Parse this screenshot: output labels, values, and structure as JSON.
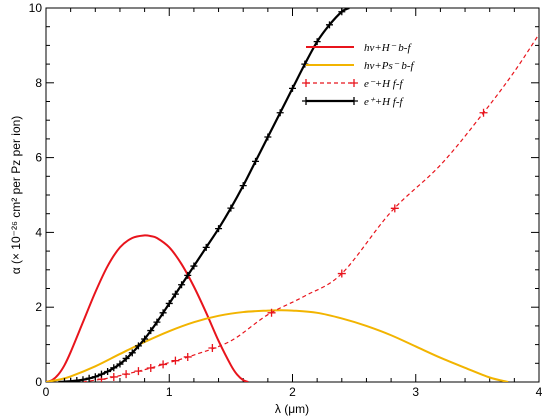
{
  "chart_data": {
    "type": "line",
    "xlabel": "λ (μm)",
    "ylabel": "α (× 10⁻²⁶ cm² per Pz per ion)",
    "xlim": [
      0,
      4
    ],
    "ylim": [
      0,
      10
    ],
    "x_ticks": [
      "0",
      "1",
      "2",
      "3",
      "4"
    ],
    "y_ticks": [
      "0",
      "2",
      "4",
      "6",
      "8",
      "10"
    ],
    "legend_position": "top-right",
    "series": [
      {
        "name": "hν+H⁻ b-f",
        "color": "#e8141c",
        "style": "solid",
        "marker": "none",
        "x": [
          0.0,
          0.05,
          0.1,
          0.15,
          0.2,
          0.3,
          0.4,
          0.5,
          0.6,
          0.7,
          0.8,
          0.85,
          0.9,
          1.0,
          1.1,
          1.2,
          1.3,
          1.4,
          1.5,
          1.55,
          1.6,
          1.64
        ],
        "y": [
          0.0,
          0.05,
          0.2,
          0.45,
          0.8,
          1.6,
          2.4,
          3.1,
          3.6,
          3.85,
          3.92,
          3.9,
          3.85,
          3.6,
          3.15,
          2.55,
          1.85,
          1.1,
          0.45,
          0.2,
          0.05,
          0.0
        ]
      },
      {
        "name": "hν+Ps⁻ b-f",
        "color": "#f2b400",
        "style": "solid",
        "marker": "none",
        "x": [
          0.0,
          0.1,
          0.2,
          0.4,
          0.6,
          0.8,
          1.0,
          1.2,
          1.4,
          1.6,
          1.8,
          1.9,
          2.0,
          2.2,
          2.4,
          2.6,
          2.8,
          3.0,
          3.2,
          3.4,
          3.6,
          3.75
        ],
        "y": [
          0.0,
          0.06,
          0.15,
          0.42,
          0.75,
          1.07,
          1.36,
          1.6,
          1.77,
          1.87,
          1.91,
          1.92,
          1.91,
          1.85,
          1.7,
          1.5,
          1.25,
          0.95,
          0.65,
          0.38,
          0.12,
          0.0
        ]
      },
      {
        "name": "e⁻+H f-f",
        "color": "#e8141c",
        "style": "dashed",
        "marker": "plus",
        "x": [
          0.3,
          0.4,
          0.5,
          0.6,
          0.7,
          0.8,
          0.9,
          1.0,
          1.2,
          1.5,
          1.8,
          2.1,
          2.4,
          2.8,
          3.2,
          3.55,
          3.8,
          4.0
        ],
        "y": [
          0.0,
          0.05,
          0.1,
          0.17,
          0.25,
          0.33,
          0.42,
          0.52,
          0.72,
          1.1,
          1.8,
          2.3,
          2.9,
          4.55,
          5.8,
          7.2,
          8.3,
          9.3
        ],
        "marker_x": [
          0.45,
          0.55,
          0.65,
          0.75,
          0.85,
          0.95,
          1.05,
          1.15,
          1.35,
          1.83,
          2.4,
          2.83,
          3.55
        ]
      },
      {
        "name": "e⁺+H f-f",
        "color": "#000000",
        "style": "solid",
        "marker": "plus",
        "x": [
          0.1,
          0.2,
          0.3,
          0.4,
          0.5,
          0.6,
          0.7,
          0.8,
          0.9,
          1.0,
          1.1,
          1.2,
          1.3,
          1.4,
          1.5,
          1.6,
          1.7,
          1.8,
          1.9,
          2.0,
          2.1,
          2.2,
          2.3,
          2.4,
          2.46
        ],
        "y": [
          0.0,
          0.02,
          0.06,
          0.14,
          0.28,
          0.48,
          0.78,
          1.15,
          1.6,
          2.1,
          2.6,
          3.1,
          3.6,
          4.1,
          4.65,
          5.25,
          5.9,
          6.55,
          7.2,
          7.85,
          8.5,
          9.1,
          9.55,
          9.9,
          10.0
        ],
        "marker_x": [
          0.15,
          0.2,
          0.25,
          0.3,
          0.35,
          0.4,
          0.45,
          0.5,
          0.55,
          0.6,
          0.65,
          0.7,
          0.75,
          0.8,
          0.85,
          0.9,
          0.95,
          1.0,
          1.05,
          1.1,
          1.15,
          1.2,
          1.3,
          1.4,
          1.5,
          1.6,
          1.7,
          1.8,
          1.9,
          2.0,
          2.1,
          2.2,
          2.3,
          2.4
        ]
      }
    ]
  }
}
